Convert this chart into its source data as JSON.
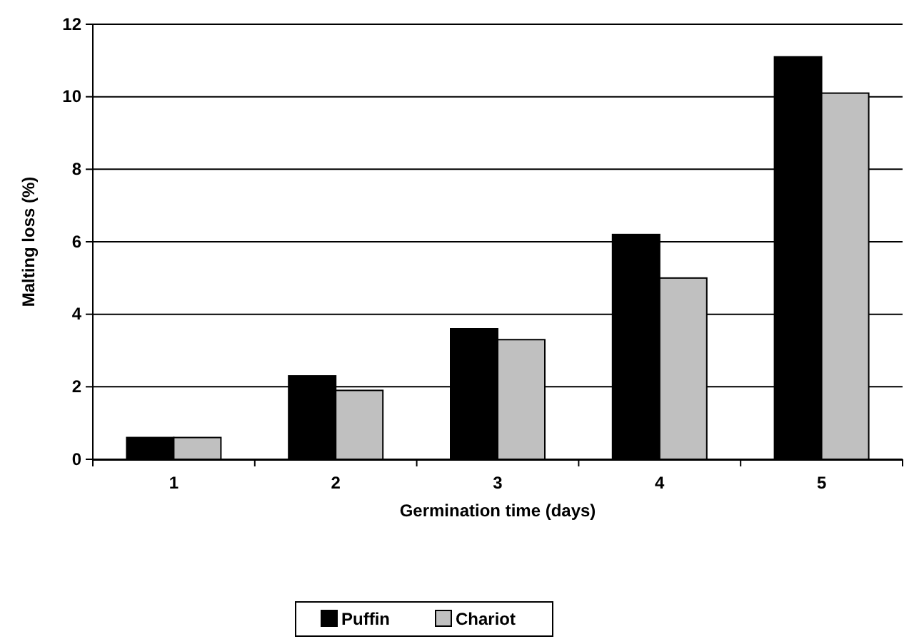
{
  "chart_data": {
    "type": "bar",
    "xlabel": "Germination time (days)",
    "ylabel": "Malting loss (%)",
    "categories": [
      "1",
      "2",
      "3",
      "4",
      "5"
    ],
    "series": [
      {
        "name": "Puffin",
        "color": "#000000",
        "values": [
          0.6,
          2.3,
          3.6,
          6.2,
          11.1
        ]
      },
      {
        "name": "Chariot",
        "color": "#c0c0c0",
        "values": [
          0.6,
          1.9,
          3.3,
          5.0,
          10.1
        ]
      }
    ],
    "ylim": [
      0,
      12
    ],
    "yticks": [
      0,
      2,
      4,
      6,
      8,
      10,
      12
    ],
    "grid": "y",
    "legend": "bottom"
  }
}
